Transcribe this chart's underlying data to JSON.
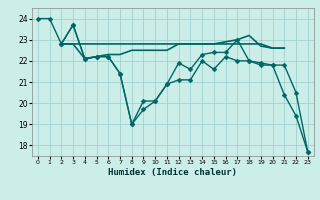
{
  "title": "",
  "xlabel": "Humidex (Indice chaleur)",
  "ylabel": "",
  "bg_color": "#cceee8",
  "line_color": "#006666",
  "grid_color": "#99cccc",
  "xlim": [
    -0.5,
    23.5
  ],
  "ylim": [
    17.5,
    24.5
  ],
  "yticks": [
    18,
    19,
    20,
    21,
    22,
    23,
    24
  ],
  "xticks": [
    0,
    1,
    2,
    3,
    4,
    5,
    6,
    7,
    8,
    9,
    10,
    11,
    12,
    13,
    14,
    15,
    16,
    17,
    18,
    19,
    20,
    21,
    22,
    23
  ],
  "series": [
    {
      "x": [
        0,
        1,
        2,
        3,
        4,
        5,
        6,
        7,
        8,
        9,
        10,
        11,
        12,
        13,
        14,
        15,
        16,
        17,
        18,
        19,
        20,
        21,
        22,
        23
      ],
      "y": [
        24.0,
        24.0,
        22.8,
        23.7,
        22.1,
        22.2,
        22.2,
        21.4,
        19.0,
        19.7,
        20.1,
        20.9,
        21.1,
        21.1,
        22.0,
        21.6,
        22.2,
        22.0,
        22.0,
        21.9,
        21.8,
        20.4,
        19.4,
        17.7
      ],
      "marker": "D",
      "markersize": 2.5,
      "linewidth": 1.0
    },
    {
      "x": [
        2,
        3,
        4,
        5,
        6,
        7,
        8,
        9,
        10,
        11,
        12,
        13,
        14,
        15,
        16,
        17,
        18,
        19,
        20,
        21
      ],
      "y": [
        22.8,
        22.8,
        22.8,
        22.8,
        22.8,
        22.8,
        22.8,
        22.8,
        22.8,
        22.8,
        22.8,
        22.8,
        22.8,
        22.8,
        22.8,
        22.8,
        22.8,
        22.8,
        22.6,
        22.6
      ],
      "marker": null,
      "markersize": 0,
      "linewidth": 1.2
    },
    {
      "x": [
        2,
        3,
        4,
        5,
        6,
        7,
        8,
        9,
        10,
        11,
        12,
        13,
        14,
        15,
        16,
        17,
        18,
        19,
        20,
        21
      ],
      "y": [
        22.8,
        22.8,
        22.1,
        22.2,
        22.3,
        22.3,
        22.5,
        22.5,
        22.5,
        22.5,
        22.8,
        22.8,
        22.8,
        22.8,
        22.9,
        23.0,
        23.2,
        22.7,
        22.6,
        22.6
      ],
      "marker": null,
      "markersize": 0,
      "linewidth": 1.2
    },
    {
      "x": [
        2,
        3,
        4,
        5,
        6,
        7,
        8,
        9,
        10,
        11,
        12,
        13,
        14,
        15,
        16,
        17,
        18,
        19,
        20,
        21,
        22,
        23
      ],
      "y": [
        22.8,
        23.7,
        22.1,
        22.2,
        22.2,
        21.4,
        19.0,
        20.1,
        20.1,
        20.9,
        21.9,
        21.6,
        22.3,
        22.4,
        22.4,
        23.0,
        22.0,
        21.8,
        21.8,
        21.8,
        20.5,
        17.7
      ],
      "marker": "D",
      "markersize": 2.5,
      "linewidth": 1.0
    }
  ]
}
